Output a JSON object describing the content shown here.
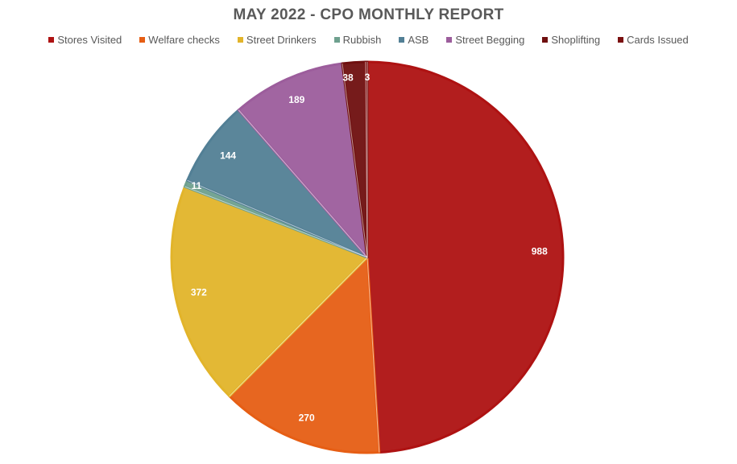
{
  "chart_data": {
    "type": "pie",
    "title": "MAY 2022 - CPO MONTHLY REPORT",
    "legend_position": "top",
    "categories": [
      "Stores Visited",
      "Welfare checks",
      "Street Drinkers",
      "Rubbish",
      "ASB",
      "Street Begging",
      "Shoplifting",
      "Cards Issued"
    ],
    "values": [
      988,
      270,
      372,
      11,
      144,
      189,
      38,
      3
    ],
    "colors": [
      "#AE1212",
      "#E65E14",
      "#E2B42A",
      "#6EA08E",
      "#527F95",
      "#9C5D9C",
      "#6F0F0F",
      "#7A1010"
    ],
    "label_color": "#FFFFFF",
    "start_angle_deg": 0,
    "direction": "clockwise"
  }
}
